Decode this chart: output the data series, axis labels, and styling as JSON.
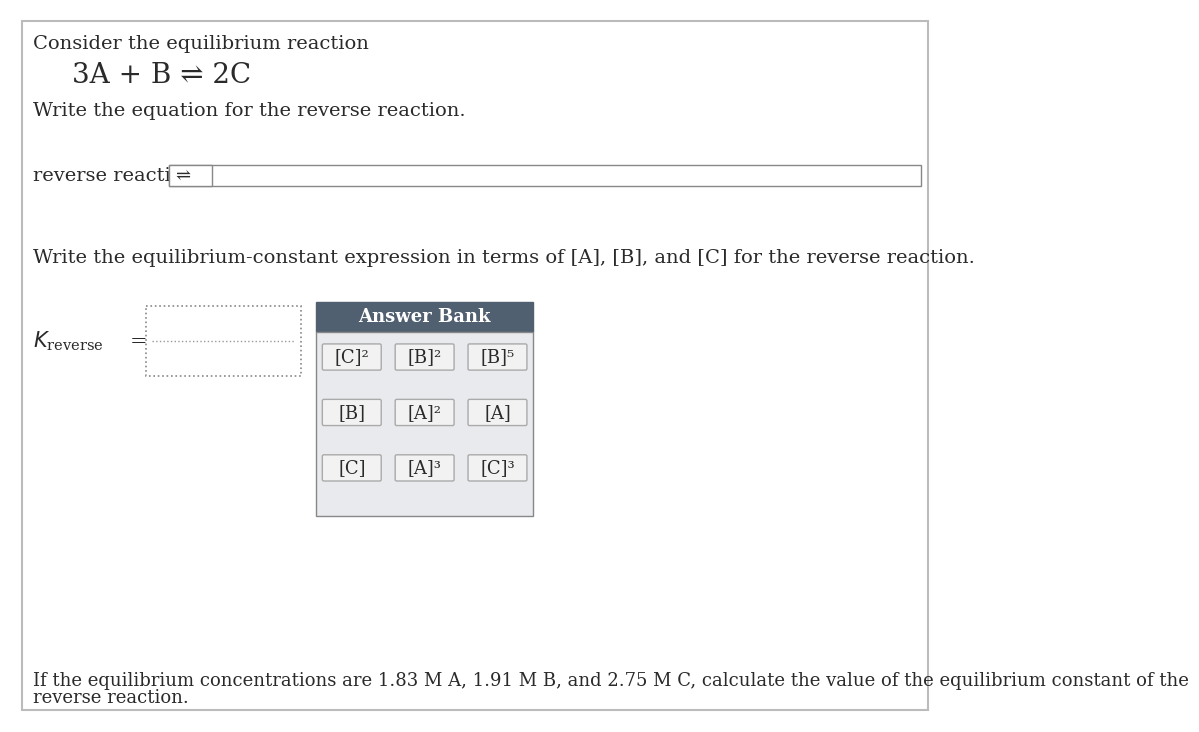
{
  "bg_color": "#ffffff",
  "outer_border_color": "#bbbbbb",
  "text_color": "#2a2a2a",
  "title_line1": "Consider the equilibrium reaction",
  "reaction": "3A + B ⇌ 2C",
  "instruction1": "Write the equation for the reverse reaction.",
  "reverse_label": "reverse reaction:",
  "instruction2": "Write the equilibrium-constant expression in terms of [A], [B], and [C] for the reverse reaction.",
  "answer_bank_header": "Answer Bank",
  "answer_bank_header_bg": "#506070",
  "answer_bank_body_bg": "#e8eaed",
  "button_bg": "#f2f2f2",
  "button_border": "#aaaaaa",
  "answer_bank_items": [
    [
      "[C]²",
      "[B]²",
      "[B]⁵"
    ],
    [
      "[B]",
      "[A]²",
      "[A]"
    ],
    [
      "[C]",
      "[A]³",
      "[C]³"
    ]
  ],
  "footer_line1": "If the equilibrium concentrations are 1.83 M A, 1.91 M B, and 2.75 M C, calculate the value of the equilibrium constant of the",
  "footer_line2": "reverse reaction.",
  "main_fontsize": 14,
  "reaction_fontsize": 20
}
